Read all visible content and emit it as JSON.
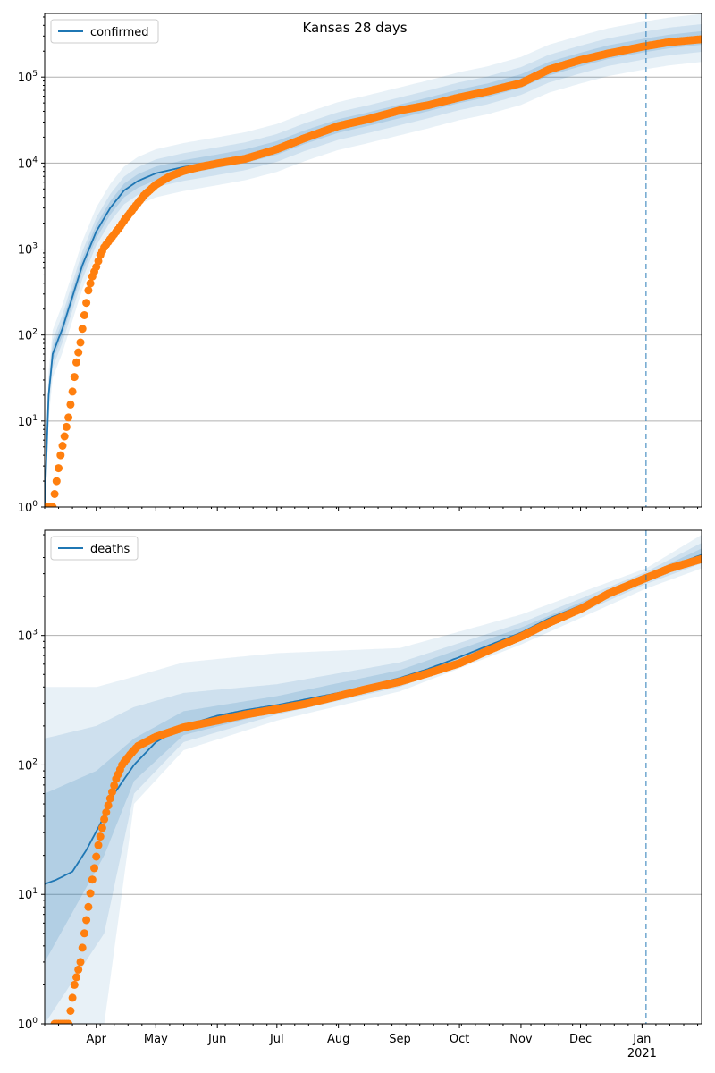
{
  "figure": {
    "title": "Kansas 28 days",
    "colors": {
      "line": "#1f77b4",
      "band": "#1f77b4",
      "points": "#ff7f0e",
      "grid": "#b0b0b0",
      "vline": "#1f77b4"
    }
  },
  "chart_data": [
    {
      "type": "line",
      "title": "Kansas 28 days",
      "legend": {
        "label": "confirmed",
        "placement": "top-left"
      },
      "y_scale": "log",
      "ylim": [
        1,
        550000
      ],
      "y_ticks": [
        {
          "value": 1,
          "base": "10",
          "exp": "0"
        },
        {
          "value": 10,
          "base": "10",
          "exp": "1"
        },
        {
          "value": 100,
          "base": "10",
          "exp": "2"
        },
        {
          "value": 1000,
          "base": "10",
          "exp": "3"
        },
        {
          "value": 10000,
          "base": "10",
          "exp": "4"
        },
        {
          "value": 100000,
          "base": "10",
          "exp": "5"
        }
      ],
      "xlim": [
        "2020-03-06",
        "2021-01-31"
      ],
      "x_ticks": [
        {
          "date": "2020-04-01",
          "label": "Apr"
        },
        {
          "date": "2020-05-01",
          "label": "May"
        },
        {
          "date": "2020-06-01",
          "label": "Jun"
        },
        {
          "date": "2020-07-01",
          "label": "Jul"
        },
        {
          "date": "2020-08-01",
          "label": "Aug"
        },
        {
          "date": "2020-09-01",
          "label": "Sep"
        },
        {
          "date": "2020-10-01",
          "label": "Oct"
        },
        {
          "date": "2020-11-01",
          "label": "Nov"
        },
        {
          "date": "2020-12-01",
          "label": "Dec"
        },
        {
          "date": "2021-01-01",
          "label": "Jan",
          "sublabel": "2021"
        }
      ],
      "grid": "horizontal",
      "forecast_start": "2021-01-03",
      "model_line": [
        [
          "2020-03-06",
          1
        ],
        [
          "2020-03-08",
          20
        ],
        [
          "2020-03-10",
          60
        ],
        [
          "2020-03-15",
          120
        ],
        [
          "2020-03-20",
          280
        ],
        [
          "2020-03-25",
          650
        ],
        [
          "2020-04-01",
          1600
        ],
        [
          "2020-04-08",
          3000
        ],
        [
          "2020-04-15",
          4800
        ],
        [
          "2020-04-22",
          6200
        ],
        [
          "2020-05-01",
          7600
        ],
        [
          "2020-05-15",
          9000
        ],
        [
          "2020-06-01",
          10500
        ],
        [
          "2020-06-15",
          12000
        ],
        [
          "2020-07-01",
          15000
        ],
        [
          "2020-07-15",
          20000
        ],
        [
          "2020-08-01",
          27000
        ],
        [
          "2020-08-15",
          32000
        ],
        [
          "2020-09-01",
          40000
        ],
        [
          "2020-09-15",
          48000
        ],
        [
          "2020-10-01",
          60000
        ],
        [
          "2020-10-15",
          70000
        ],
        [
          "2020-11-01",
          90000
        ],
        [
          "2020-11-15",
          125000
        ],
        [
          "2020-12-01",
          160000
        ],
        [
          "2020-12-15",
          195000
        ],
        [
          "2021-01-03",
          235000
        ],
        [
          "2021-01-15",
          260000
        ],
        [
          "2021-01-31",
          285000
        ]
      ],
      "bands": [
        {
          "ratio": 1.9,
          "opacity": 0.1
        },
        {
          "ratio": 1.45,
          "opacity": 0.12
        },
        {
          "ratio": 1.2,
          "opacity": 0.16
        }
      ],
      "observed": [
        [
          "2020-03-07",
          1
        ],
        [
          "2020-03-10",
          1
        ],
        [
          "2020-03-14",
          4
        ],
        [
          "2020-03-18",
          11
        ],
        [
          "2020-03-20",
          22
        ],
        [
          "2020-03-22",
          48
        ],
        [
          "2020-03-24",
          82
        ],
        [
          "2020-03-26",
          170
        ],
        [
          "2020-03-28",
          330
        ],
        [
          "2020-03-30",
          480
        ],
        [
          "2020-04-01",
          620
        ],
        [
          "2020-04-03",
          850
        ],
        [
          "2020-04-05",
          1050
        ],
        [
          "2020-04-08",
          1300
        ],
        [
          "2020-04-12",
          1700
        ],
        [
          "2020-04-16",
          2300
        ],
        [
          "2020-04-20",
          3000
        ],
        [
          "2020-04-25",
          4200
        ],
        [
          "2020-05-01",
          5600
        ],
        [
          "2020-05-08",
          7000
        ],
        [
          "2020-05-15",
          8100
        ],
        [
          "2020-05-22",
          8900
        ],
        [
          "2020-06-01",
          9900
        ],
        [
          "2020-06-15",
          11200
        ],
        [
          "2020-07-01",
          14500
        ],
        [
          "2020-07-15",
          19500
        ],
        [
          "2020-08-01",
          27000
        ],
        [
          "2020-08-15",
          32000
        ],
        [
          "2020-09-01",
          41000
        ],
        [
          "2020-09-15",
          47000
        ],
        [
          "2020-10-01",
          58000
        ],
        [
          "2020-10-15",
          68000
        ],
        [
          "2020-11-01",
          85000
        ],
        [
          "2020-11-15",
          122000
        ],
        [
          "2020-12-01",
          158000
        ],
        [
          "2020-12-15",
          188000
        ],
        [
          "2021-01-01",
          225000
        ],
        [
          "2021-01-15",
          255000
        ],
        [
          "2021-01-31",
          275000
        ]
      ]
    },
    {
      "type": "line",
      "legend": {
        "label": "deaths",
        "placement": "top-left"
      },
      "y_scale": "log",
      "ylim": [
        1,
        6500
      ],
      "y_ticks": [
        {
          "value": 1,
          "base": "10",
          "exp": "0"
        },
        {
          "value": 10,
          "base": "10",
          "exp": "1"
        },
        {
          "value": 100,
          "base": "10",
          "exp": "2"
        },
        {
          "value": 1000,
          "base": "10",
          "exp": "3"
        }
      ],
      "xlim": [
        "2020-03-06",
        "2021-01-31"
      ],
      "x_ticks": [
        {
          "date": "2020-04-01",
          "label": "Apr"
        },
        {
          "date": "2020-05-01",
          "label": "May"
        },
        {
          "date": "2020-06-01",
          "label": "Jun"
        },
        {
          "date": "2020-07-01",
          "label": "Jul"
        },
        {
          "date": "2020-08-01",
          "label": "Aug"
        },
        {
          "date": "2020-09-01",
          "label": "Sep"
        },
        {
          "date": "2020-10-01",
          "label": "Oct"
        },
        {
          "date": "2020-11-01",
          "label": "Nov"
        },
        {
          "date": "2020-12-01",
          "label": "Dec"
        },
        {
          "date": "2021-01-01",
          "label": "Jan",
          "sublabel": "2021"
        }
      ],
      "grid": "horizontal",
      "forecast_start": "2021-01-03",
      "model_line": [
        [
          "2020-03-06",
          12
        ],
        [
          "2020-03-12",
          13
        ],
        [
          "2020-03-20",
          15
        ],
        [
          "2020-03-27",
          22
        ],
        [
          "2020-04-03",
          35
        ],
        [
          "2020-04-10",
          60
        ],
        [
          "2020-04-20",
          100
        ],
        [
          "2020-05-01",
          150
        ],
        [
          "2020-05-15",
          200
        ],
        [
          "2020-06-01",
          240
        ],
        [
          "2020-06-15",
          265
        ],
        [
          "2020-07-01",
          290
        ],
        [
          "2020-07-15",
          320
        ],
        [
          "2020-08-01",
          360
        ],
        [
          "2020-08-15",
          400
        ],
        [
          "2020-09-01",
          470
        ],
        [
          "2020-09-15",
          550
        ],
        [
          "2020-10-01",
          680
        ],
        [
          "2020-10-15",
          830
        ],
        [
          "2020-11-01",
          1050
        ],
        [
          "2020-11-15",
          1350
        ],
        [
          "2020-12-01",
          1700
        ],
        [
          "2020-12-15",
          2200
        ],
        [
          "2021-01-03",
          2900
        ],
        [
          "2021-01-15",
          3400
        ],
        [
          "2021-01-31",
          4200
        ]
      ],
      "bands": [
        {
          "lower": [
            [
              "2020-03-06",
              1
            ],
            [
              "2020-04-05",
              1
            ],
            [
              "2020-04-20",
              50
            ],
            [
              "2020-05-15",
              130
            ],
            [
              "2020-07-01",
              220
            ],
            [
              "2020-09-01",
              370
            ],
            [
              "2020-11-01",
              850
            ],
            [
              "2021-01-03",
              2300
            ],
            [
              "2021-01-31",
              3300
            ]
          ],
          "upper": [
            [
              "2020-03-06",
              400
            ],
            [
              "2020-04-01",
              400
            ],
            [
              "2020-04-20",
              480
            ],
            [
              "2020-05-15",
              620
            ],
            [
              "2020-07-01",
              730
            ],
            [
              "2020-09-01",
              800
            ],
            [
              "2020-11-01",
              1450
            ],
            [
              "2021-01-03",
              3300
            ],
            [
              "2021-01-31",
              6000
            ]
          ],
          "opacity": 0.1
        },
        {
          "lower": [
            [
              "2020-03-06",
              1
            ],
            [
              "2020-04-05",
              5
            ],
            [
              "2020-04-20",
              60
            ],
            [
              "2020-05-15",
              150
            ],
            [
              "2020-07-01",
              245
            ],
            [
              "2020-09-01",
              400
            ],
            [
              "2020-11-01",
              930
            ],
            [
              "2021-01-03",
              2500
            ],
            [
              "2021-01-31",
              3600
            ]
          ],
          "upper": [
            [
              "2020-03-06",
              160
            ],
            [
              "2020-04-01",
              200
            ],
            [
              "2020-04-20",
              280
            ],
            [
              "2020-05-15",
              360
            ],
            [
              "2020-07-01",
              420
            ],
            [
              "2020-09-01",
              620
            ],
            [
              "2020-11-01",
              1250
            ],
            [
              "2021-01-03",
              3100
            ],
            [
              "2021-01-31",
              5200
            ]
          ],
          "opacity": 0.13
        },
        {
          "lower": [
            [
              "2020-03-06",
              3
            ],
            [
              "2020-04-05",
              20
            ],
            [
              "2020-04-20",
              75
            ],
            [
              "2020-05-15",
              170
            ],
            [
              "2020-07-01",
              260
            ],
            [
              "2020-09-01",
              430
            ],
            [
              "2020-11-01",
              980
            ],
            [
              "2021-01-03",
              2650
            ],
            [
              "2021-01-31",
              3800
            ]
          ],
          "upper": [
            [
              "2020-03-06",
              60
            ],
            [
              "2020-04-01",
              90
            ],
            [
              "2020-04-20",
              160
            ],
            [
              "2020-05-15",
              260
            ],
            [
              "2020-07-01",
              340
            ],
            [
              "2020-09-01",
              540
            ],
            [
              "2020-11-01",
              1150
            ],
            [
              "2021-01-03",
              2950
            ],
            [
              "2021-01-31",
              4700
            ]
          ],
          "opacity": 0.16
        }
      ],
      "observed": [
        [
          "2020-03-11",
          1
        ],
        [
          "2020-03-18",
          1
        ],
        [
          "2020-03-21",
          2
        ],
        [
          "2020-03-24",
          3
        ],
        [
          "2020-03-26",
          5
        ],
        [
          "2020-03-28",
          8
        ],
        [
          "2020-03-30",
          13
        ],
        [
          "2020-04-02",
          24
        ],
        [
          "2020-04-05",
          38
        ],
        [
          "2020-04-08",
          55
        ],
        [
          "2020-04-11",
          78
        ],
        [
          "2020-04-14",
          100
        ],
        [
          "2020-04-18",
          120
        ],
        [
          "2020-04-22",
          140
        ],
        [
          "2020-05-01",
          165
        ],
        [
          "2020-05-15",
          195
        ],
        [
          "2020-06-01",
          220
        ],
        [
          "2020-06-15",
          245
        ],
        [
          "2020-07-01",
          270
        ],
        [
          "2020-07-15",
          295
        ],
        [
          "2020-08-01",
          340
        ],
        [
          "2020-08-15",
          385
        ],
        [
          "2020-09-01",
          440
        ],
        [
          "2020-09-15",
          510
        ],
        [
          "2020-10-01",
          610
        ],
        [
          "2020-10-15",
          760
        ],
        [
          "2020-11-01",
          980
        ],
        [
          "2020-11-15",
          1250
        ],
        [
          "2020-12-01",
          1600
        ],
        [
          "2020-12-15",
          2100
        ],
        [
          "2021-01-01",
          2700
        ],
        [
          "2021-01-15",
          3300
        ],
        [
          "2021-01-31",
          3900
        ]
      ]
    }
  ]
}
